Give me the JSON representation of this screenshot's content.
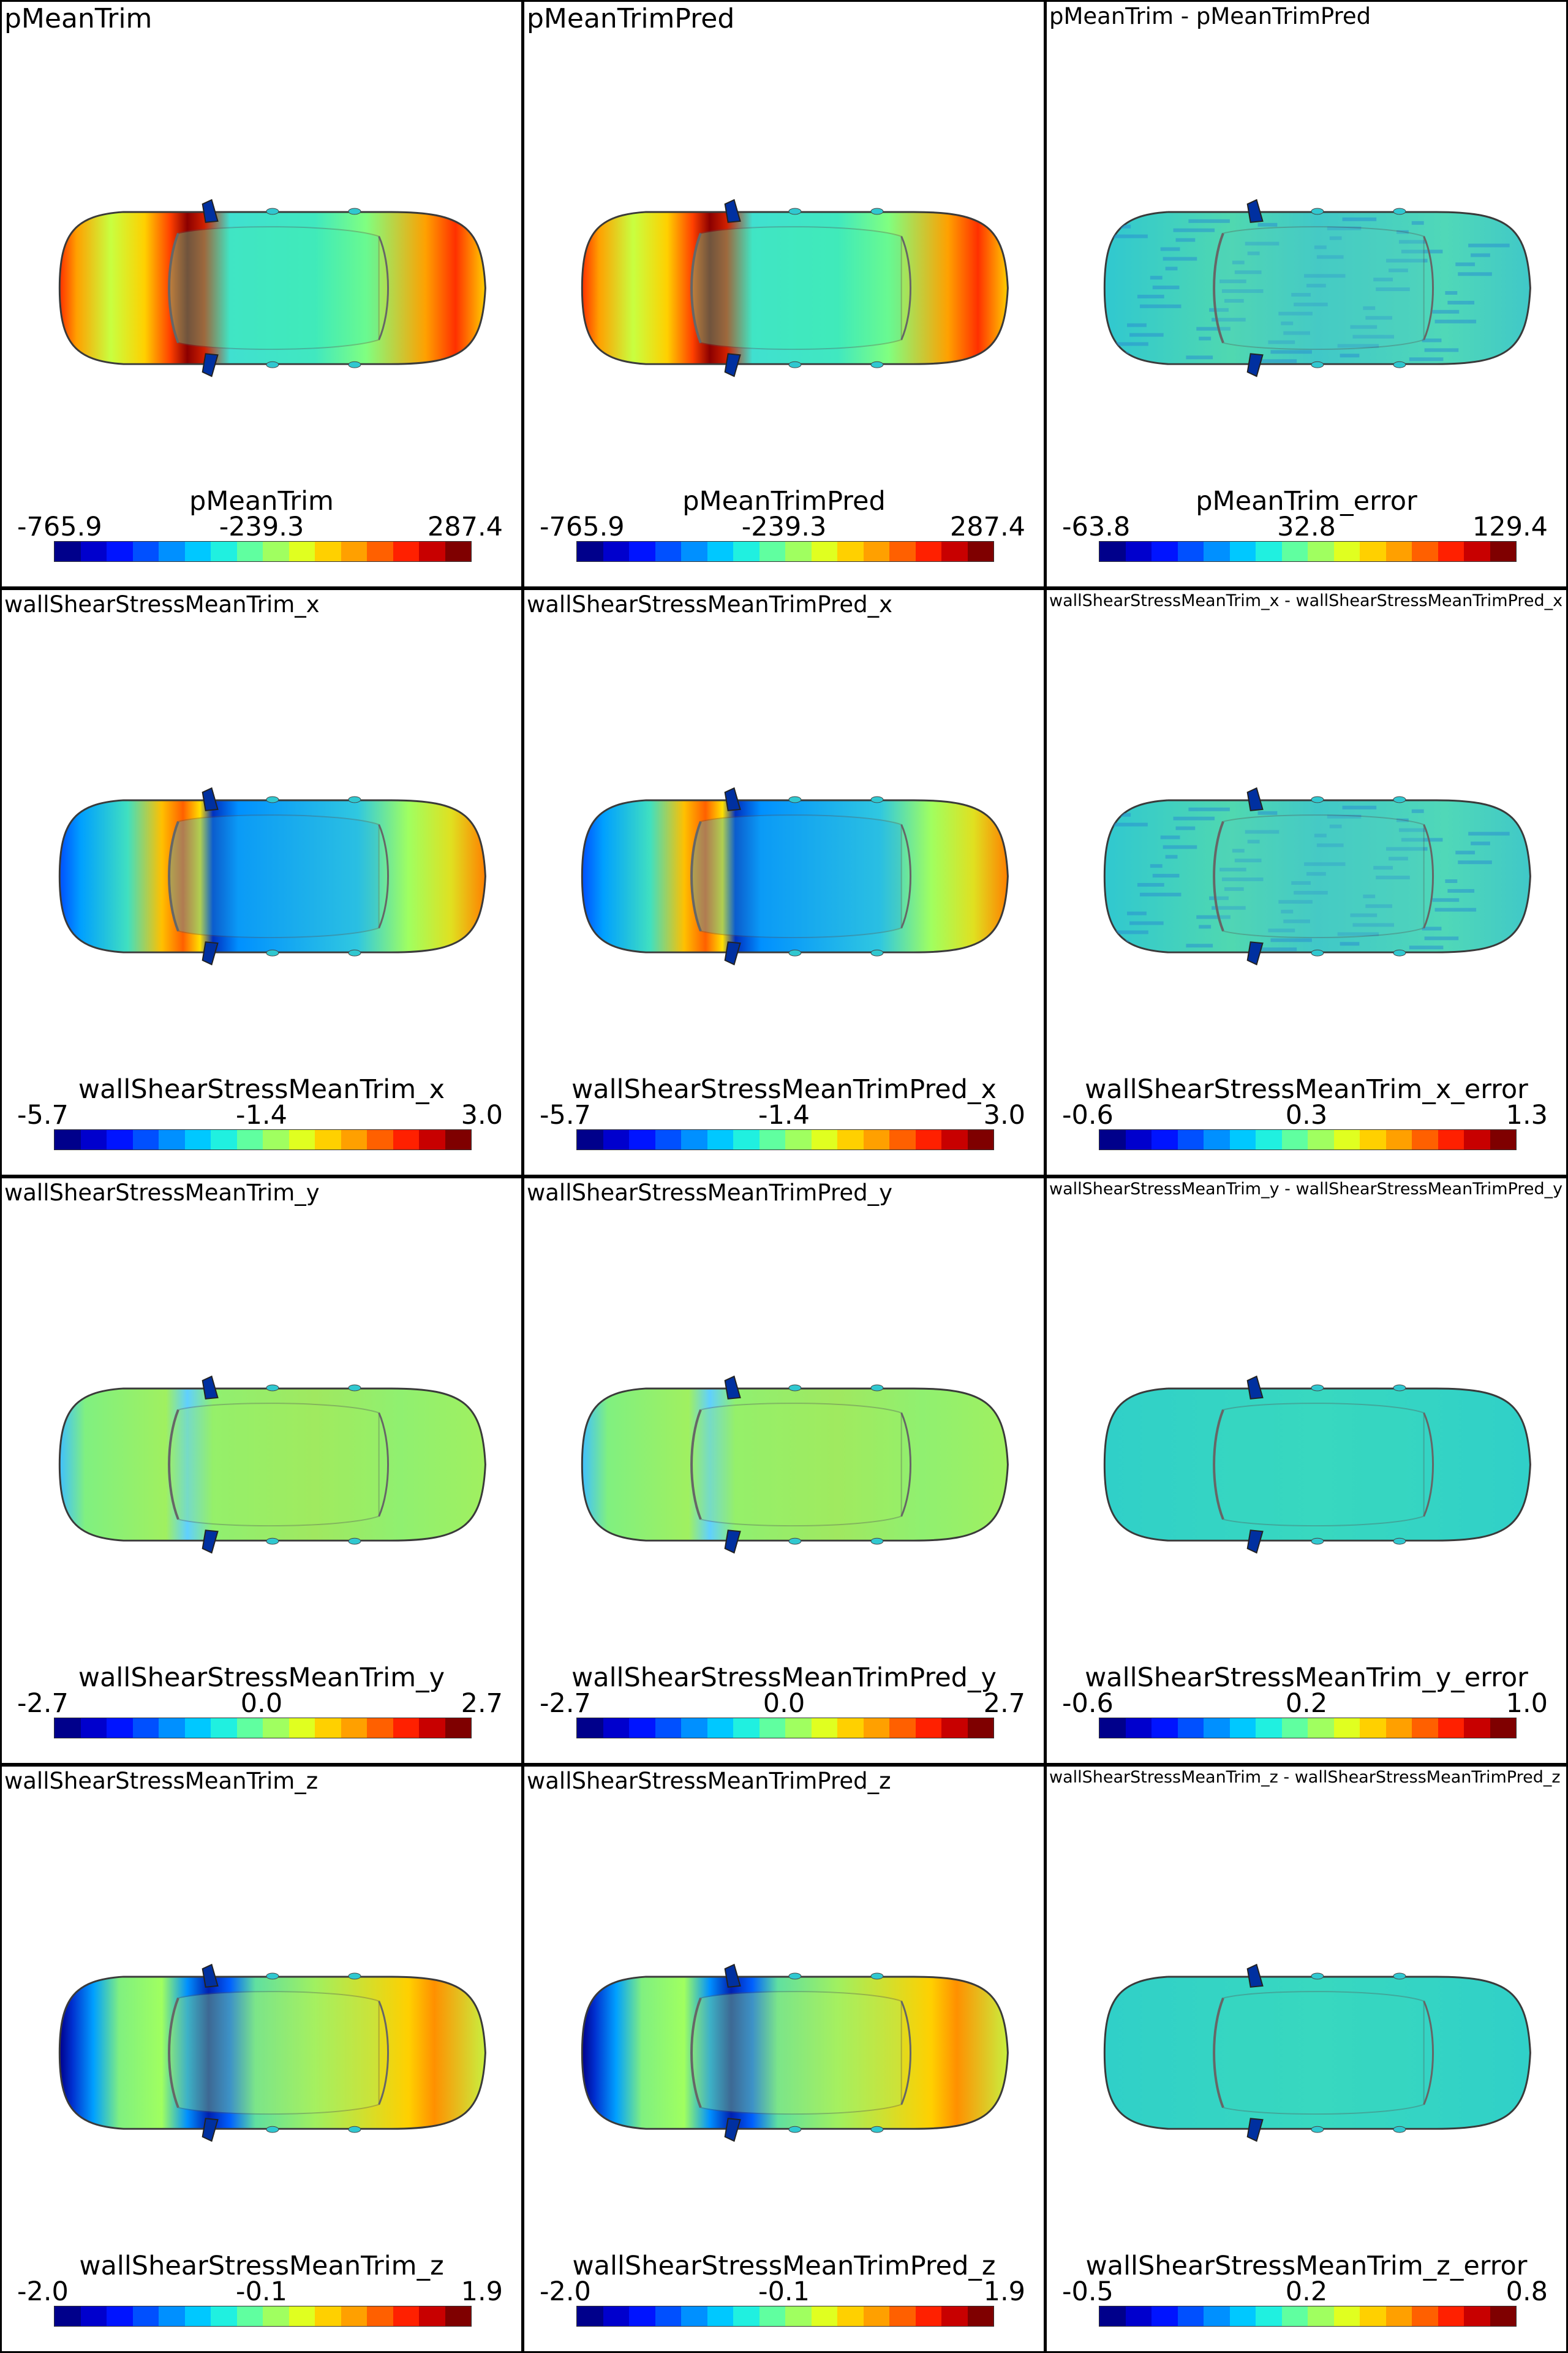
{
  "palette": [
    "#00008b",
    "#0000cd",
    "#0014ff",
    "#0050ff",
    "#0090ff",
    "#00c8ff",
    "#20f0e0",
    "#60ffa0",
    "#a0ff60",
    "#e0ff20",
    "#ffd000",
    "#ffa000",
    "#ff6000",
    "#ff2000",
    "#c80000",
    "#7f0000"
  ],
  "panels": [
    {
      "title": "pMeanTrim",
      "size": "big",
      "variable": "pMeanTrim",
      "min": "-765.9",
      "mid": "-239.3",
      "max": "287.4",
      "style": "pressure"
    },
    {
      "title": "pMeanTrimPred",
      "size": "big",
      "variable": "pMeanTrimPred",
      "min": "-765.9",
      "mid": "-239.3",
      "max": "287.4",
      "style": "pressure"
    },
    {
      "title": "pMeanTrim - pMeanTrimPred",
      "size": "med",
      "variable": "pMeanTrim_error",
      "min": "-63.8",
      "mid": "32.8",
      "max": "129.4",
      "style": "error"
    },
    {
      "title": "wallShearStressMeanTrim_x",
      "size": "med",
      "variable": "wallShearStressMeanTrim_x",
      "min": "-5.7",
      "mid": "-1.4",
      "max": "3.0",
      "style": "wssx"
    },
    {
      "title": "wallShearStressMeanTrimPred_x",
      "size": "med",
      "variable": "wallShearStressMeanTrimPred_x",
      "min": "-5.7",
      "mid": "-1.4",
      "max": "3.0",
      "style": "wssx"
    },
    {
      "title": "wallShearStressMeanTrim_x - wallShearStressMeanTrimPred_x",
      "size": "small",
      "variable": "wallShearStressMeanTrim_x_error",
      "min": "-0.6",
      "mid": "0.3",
      "max": "1.3",
      "style": "error"
    },
    {
      "title": "wallShearStressMeanTrim_y",
      "size": "med",
      "variable": "wallShearStressMeanTrim_y",
      "min": "-2.7",
      "mid": "0.0",
      "max": "2.7",
      "style": "wssy"
    },
    {
      "title": "wallShearStressMeanTrimPred_y",
      "size": "med",
      "variable": "wallShearStressMeanTrimPred_y",
      "min": "-2.7",
      "mid": "0.0",
      "max": "2.7",
      "style": "wssy"
    },
    {
      "title": "wallShearStressMeanTrim_y - wallShearStressMeanTrimPred_y",
      "size": "small",
      "variable": "wallShearStressMeanTrim_y_error",
      "min": "-0.6",
      "mid": "0.2",
      "max": "1.0",
      "style": "errorflat"
    },
    {
      "title": "wallShearStressMeanTrim_z",
      "size": "med",
      "variable": "wallShearStressMeanTrim_z",
      "min": "-2.0",
      "mid": "-0.1",
      "max": "1.9",
      "style": "wssz"
    },
    {
      "title": "wallShearStressMeanTrimPred_z",
      "size": "med",
      "variable": "wallShearStressMeanTrimPred_z",
      "min": "-2.0",
      "mid": "-0.1",
      "max": "1.9",
      "style": "wssz"
    },
    {
      "title": "wallShearStressMeanTrim_z - wallShearStressMeanTrimPred_z",
      "size": "small",
      "variable": "wallShearStressMeanTrim_z_error",
      "min": "-0.5",
      "mid": "0.2",
      "max": "0.8",
      "style": "errorflat"
    }
  ]
}
